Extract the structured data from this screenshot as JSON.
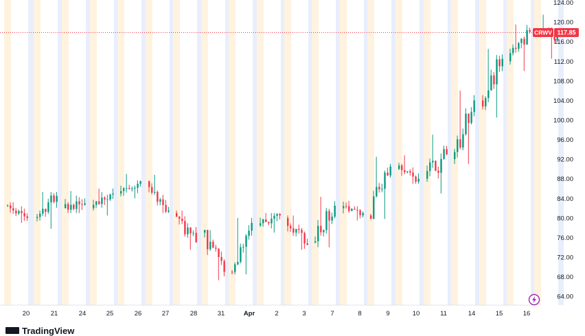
{
  "chart_data": {
    "type": "candlestick",
    "symbol": "CRWV",
    "last_price": 117.85,
    "last_price_label": "117.85",
    "y_ticks": [
      "124.00",
      "120.00",
      "116.00",
      "112.00",
      "108.00",
      "104.00",
      "100.00",
      "96.00",
      "92.00",
      "88.00",
      "84.00",
      "80.00",
      "76.00",
      "72.00",
      "68.00",
      "64.00"
    ],
    "y_tick_values": [
      124,
      120,
      116,
      112,
      108,
      104,
      100,
      96,
      92,
      88,
      84,
      80,
      76,
      72,
      68,
      64
    ],
    "ylim": [
      62.2,
      124.5
    ],
    "x_ticks": [
      "20",
      "21",
      "24",
      "25",
      "26",
      "27",
      "28",
      "31",
      "Apr",
      "2",
      "3",
      "7",
      "8",
      "9",
      "10",
      "11",
      "14",
      "15",
      "16"
    ],
    "days": [
      {
        "label": "20",
        "o": 82.5,
        "c": 80.0,
        "h": 83.2,
        "l": 79.0
      },
      {
        "label": "21",
        "o": 80.0,
        "c": 84.5,
        "h": 85.3,
        "l": 77.8
      },
      {
        "label": "24",
        "o": 82.0,
        "c": 83.0,
        "h": 85.5,
        "l": 81.0
      },
      {
        "label": "25",
        "o": 82.0,
        "c": 85.0,
        "h": 86.0,
        "l": 80.5
      },
      {
        "label": "26",
        "o": 85.0,
        "c": 87.5,
        "h": 89.0,
        "l": 84.0
      },
      {
        "label": "27",
        "o": 87.5,
        "c": 81.5,
        "h": 88.8,
        "l": 81.0
      },
      {
        "label": "28",
        "o": 81.0,
        "c": 75.0,
        "h": 81.5,
        "l": 73.5
      },
      {
        "label": "31",
        "o": 77.0,
        "c": 69.0,
        "h": 77.5,
        "l": 67.3
      },
      {
        "label": "Apr",
        "o": 69.0,
        "c": 79.0,
        "h": 80.0,
        "l": 68.5
      },
      {
        "label": "2",
        "o": 78.5,
        "c": 80.5,
        "h": 81.0,
        "l": 77.0
      },
      {
        "label": "3",
        "o": 80.0,
        "c": 74.5,
        "h": 80.5,
        "l": 73.5
      },
      {
        "label": "7",
        "o": 75.0,
        "c": 82.5,
        "h": 84.3,
        "l": 74.0
      },
      {
        "label": "8",
        "o": 82.0,
        "c": 81.0,
        "h": 83.5,
        "l": 79.5
      },
      {
        "label": "9",
        "o": 80.5,
        "c": 90.5,
        "h": 92.5,
        "l": 79.8
      },
      {
        "label": "10",
        "o": 90.0,
        "c": 88.0,
        "h": 92.8,
        "l": 87.0
      },
      {
        "label": "11",
        "o": 88.0,
        "c": 93.0,
        "h": 97.0,
        "l": 85.0
      },
      {
        "label": "14",
        "o": 92.0,
        "c": 104.0,
        "h": 106.0,
        "l": 91.0
      },
      {
        "label": "15",
        "o": 104.0,
        "c": 112.5,
        "h": 114.5,
        "l": 100.5
      },
      {
        "label": "16",
        "o": 112.0,
        "c": 118.0,
        "h": 119.5,
        "l": 110.0
      },
      {
        "label": "",
        "o": 118.0,
        "c": 117.85,
        "h": 121.5,
        "l": 112.5
      }
    ],
    "colors": {
      "up": "#089981",
      "down": "#f23645",
      "band_orange": "#fff3e0",
      "band_blue": "#e8eefc",
      "axis_text": "#131722",
      "price_line": "#f23645"
    },
    "grid": false
  },
  "branding": {
    "text": "TradingView"
  }
}
